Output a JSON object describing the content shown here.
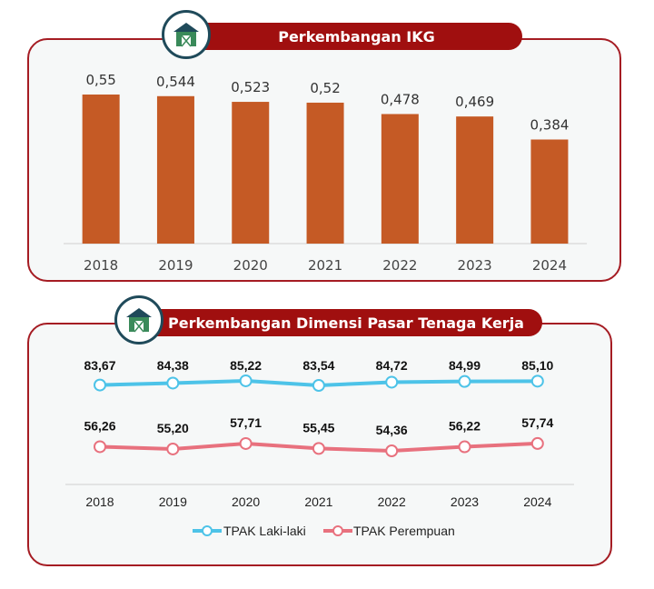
{
  "panel1": {
    "title": "Perkembangan IKG",
    "icon": "barn-icon"
  },
  "panel2": {
    "title": "Perkembangan Dimensi Pasar Tenaga Kerja",
    "icon": "barn-icon"
  },
  "colors": {
    "bar": "#c55a25",
    "male": "#4dc3e8",
    "female": "#e8717e",
    "frame": "#a51c23",
    "title_bg": "#a00f0f"
  },
  "chart_data": [
    {
      "type": "bar",
      "title": "Perkembangan IKG",
      "categories": [
        "2018",
        "2019",
        "2020",
        "2021",
        "2022",
        "2023",
        "2024"
      ],
      "values": [
        0.55,
        0.544,
        0.523,
        0.52,
        0.478,
        0.469,
        0.384
      ],
      "value_labels": [
        "0,55",
        "0,544",
        "0,523",
        "0,52",
        "0,478",
        "0,469",
        "0,384"
      ],
      "xlabel": "",
      "ylabel": "",
      "ylim": [
        0,
        0.55
      ],
      "grid": false
    },
    {
      "type": "line",
      "title": "Perkembangan Dimensi Pasar Tenaga Kerja",
      "categories": [
        "2018",
        "2019",
        "2020",
        "2021",
        "2022",
        "2023",
        "2024"
      ],
      "series": [
        {
          "name": "TPAK Laki-laki",
          "values": [
            83.67,
            84.38,
            85.22,
            83.54,
            84.72,
            84.99,
            85.1
          ],
          "labels": [
            "83,67",
            "84,38",
            "85,22",
            "83,54",
            "84,72",
            "84,99",
            "85,10"
          ]
        },
        {
          "name": "TPAK Perempuan",
          "values": [
            56.26,
            55.2,
            57.71,
            55.45,
            54.36,
            56.22,
            57.74
          ],
          "labels": [
            "56,26",
            "55,20",
            "57,71",
            "55,45",
            "54,36",
            "56,22",
            "57,74"
          ]
        }
      ],
      "legend": "bottom",
      "grid": false
    }
  ]
}
